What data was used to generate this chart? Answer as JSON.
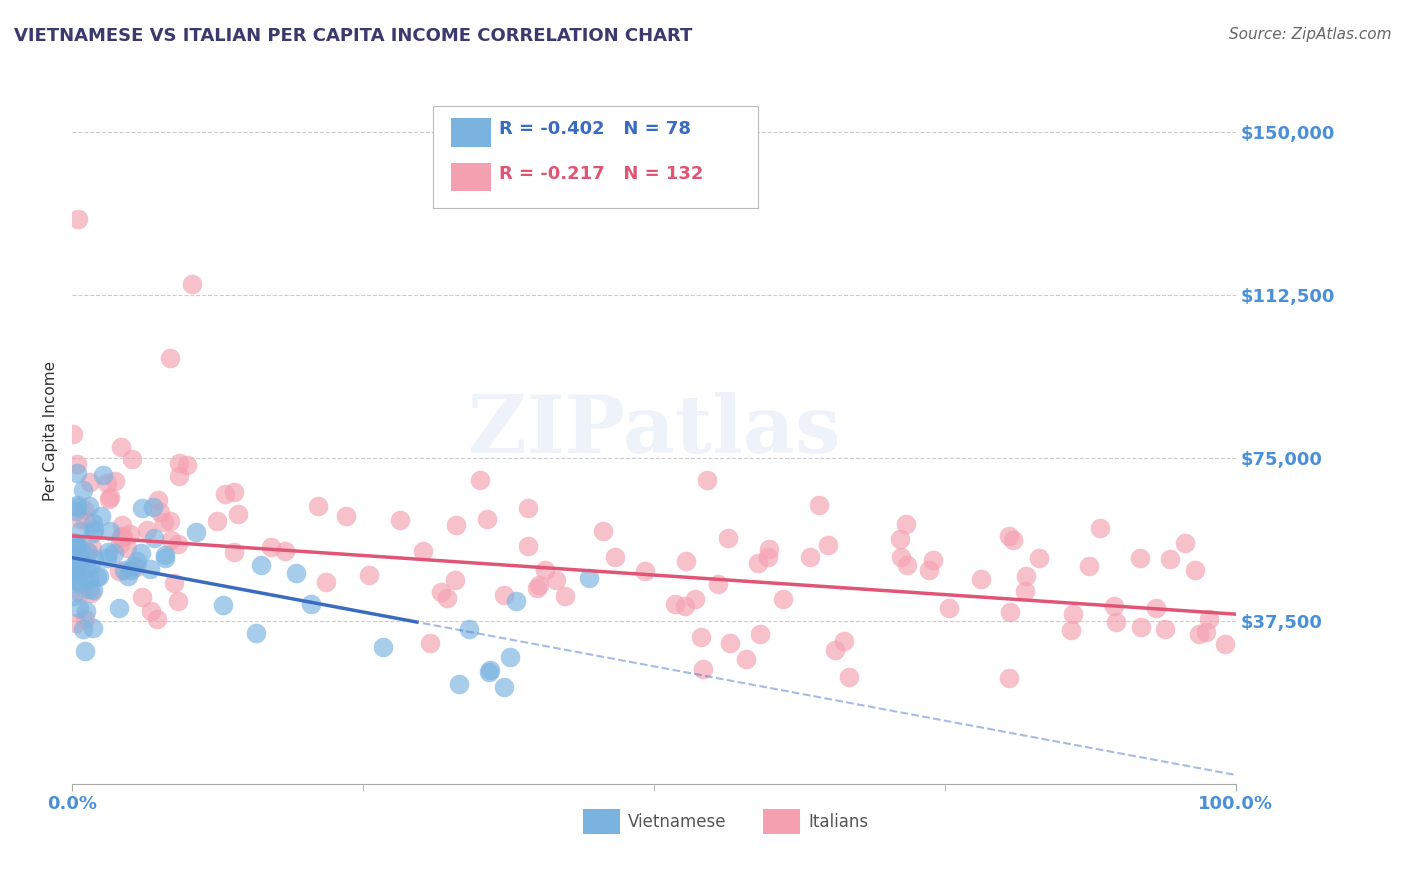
{
  "title": "VIETNAMESE VS ITALIAN PER CAPITA INCOME CORRELATION CHART",
  "source": "Source: ZipAtlas.com",
  "ylabel": "Per Capita Income",
  "xlim": [
    0.0,
    1.0
  ],
  "ylim": [
    0,
    162500
  ],
  "yticks": [
    37500,
    75000,
    112500,
    150000
  ],
  "ytick_labels": [
    "$37,500",
    "$75,000",
    "$112,500",
    "$150,000"
  ],
  "xtick_labels": [
    "0.0%",
    "100.0%"
  ],
  "background_color": "#ffffff",
  "title_color": "#3a3a6e",
  "axis_label_color": "#4a90d9",
  "grid_color": "#cccccc",
  "viet_color": "#7ab3e0",
  "ital_color": "#f4a0b0",
  "viet_line_color": "#3a6bbf",
  "ital_line_color": "#e05575",
  "viet_R": -0.402,
  "viet_N": 78,
  "ital_R": -0.217,
  "ital_N": 132,
  "legend_label_viet": "Vietnamese",
  "legend_label_ital": "Italians",
  "watermark": "ZIPatlas",
  "viet_intercept": 52000,
  "viet_slope": -50000,
  "ital_intercept": 57000,
  "ital_slope": -18000
}
